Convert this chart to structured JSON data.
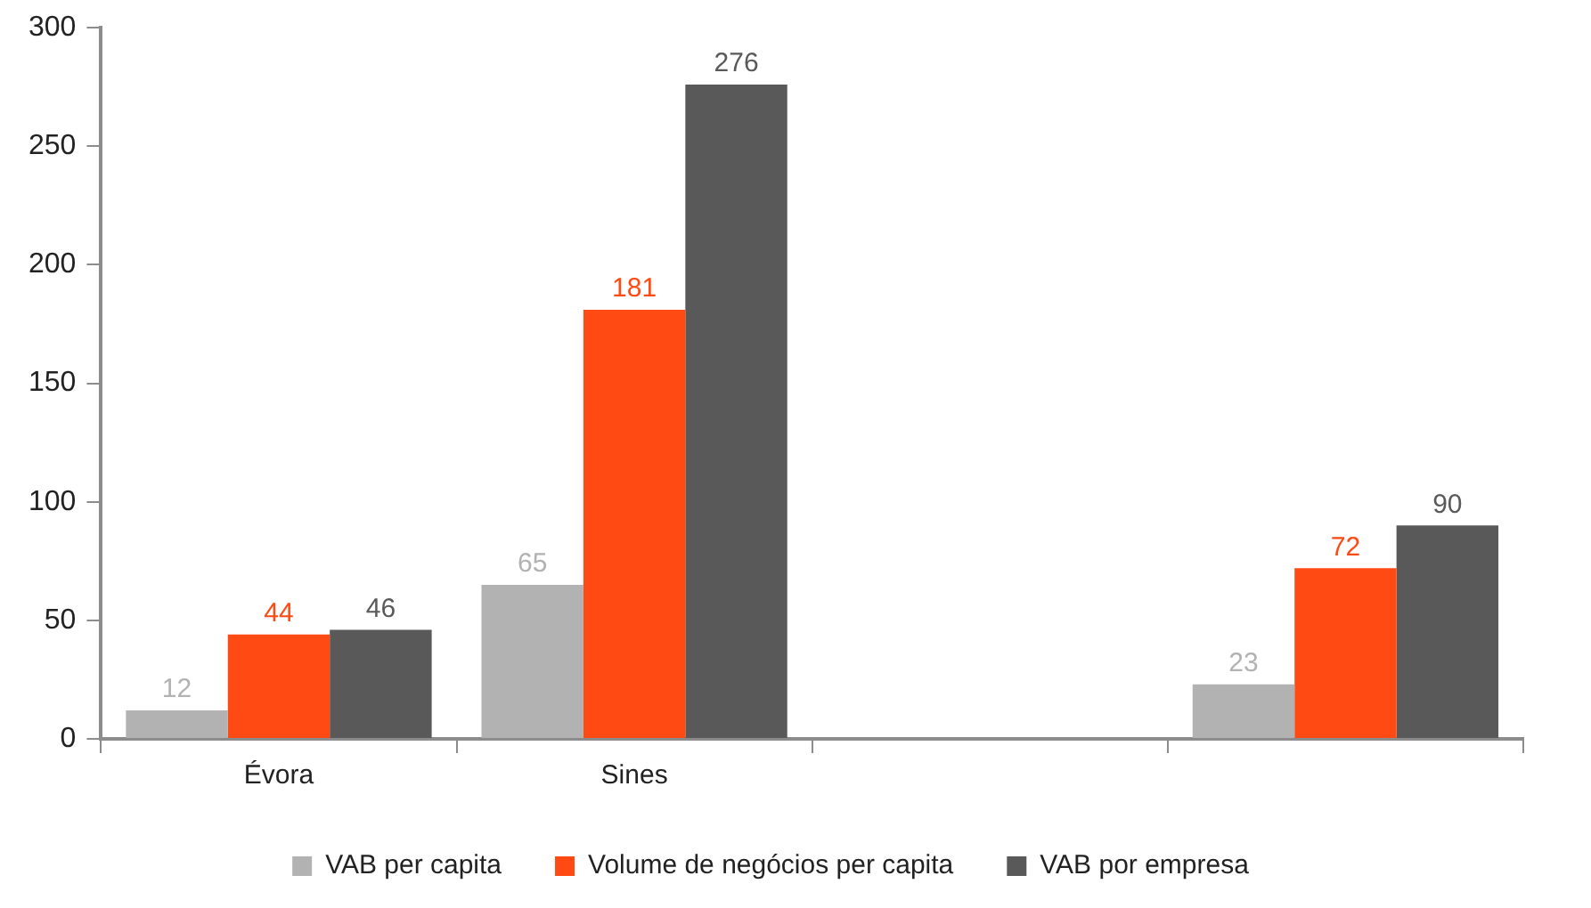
{
  "chart_data": {
    "type": "bar",
    "categories": [
      "Évora",
      "Sines",
      null,
      null
    ],
    "series": [
      {
        "name": "VAB per capita",
        "color": "#b2b2b2",
        "values": [
          12,
          65,
          null,
          23
        ]
      },
      {
        "name": "Volume de negócios per capita",
        "color": "#ff4a13",
        "values": [
          44,
          181,
          null,
          72
        ]
      },
      {
        "name": "VAB por empresa",
        "color": "#595959",
        "values": [
          46,
          276,
          null,
          90
        ]
      }
    ],
    "ylim": [
      0,
      300
    ],
    "yticks": [
      0,
      50,
      100,
      150,
      200,
      250,
      300
    ],
    "data_labels": true,
    "grid": false,
    "legend": "bottom"
  }
}
